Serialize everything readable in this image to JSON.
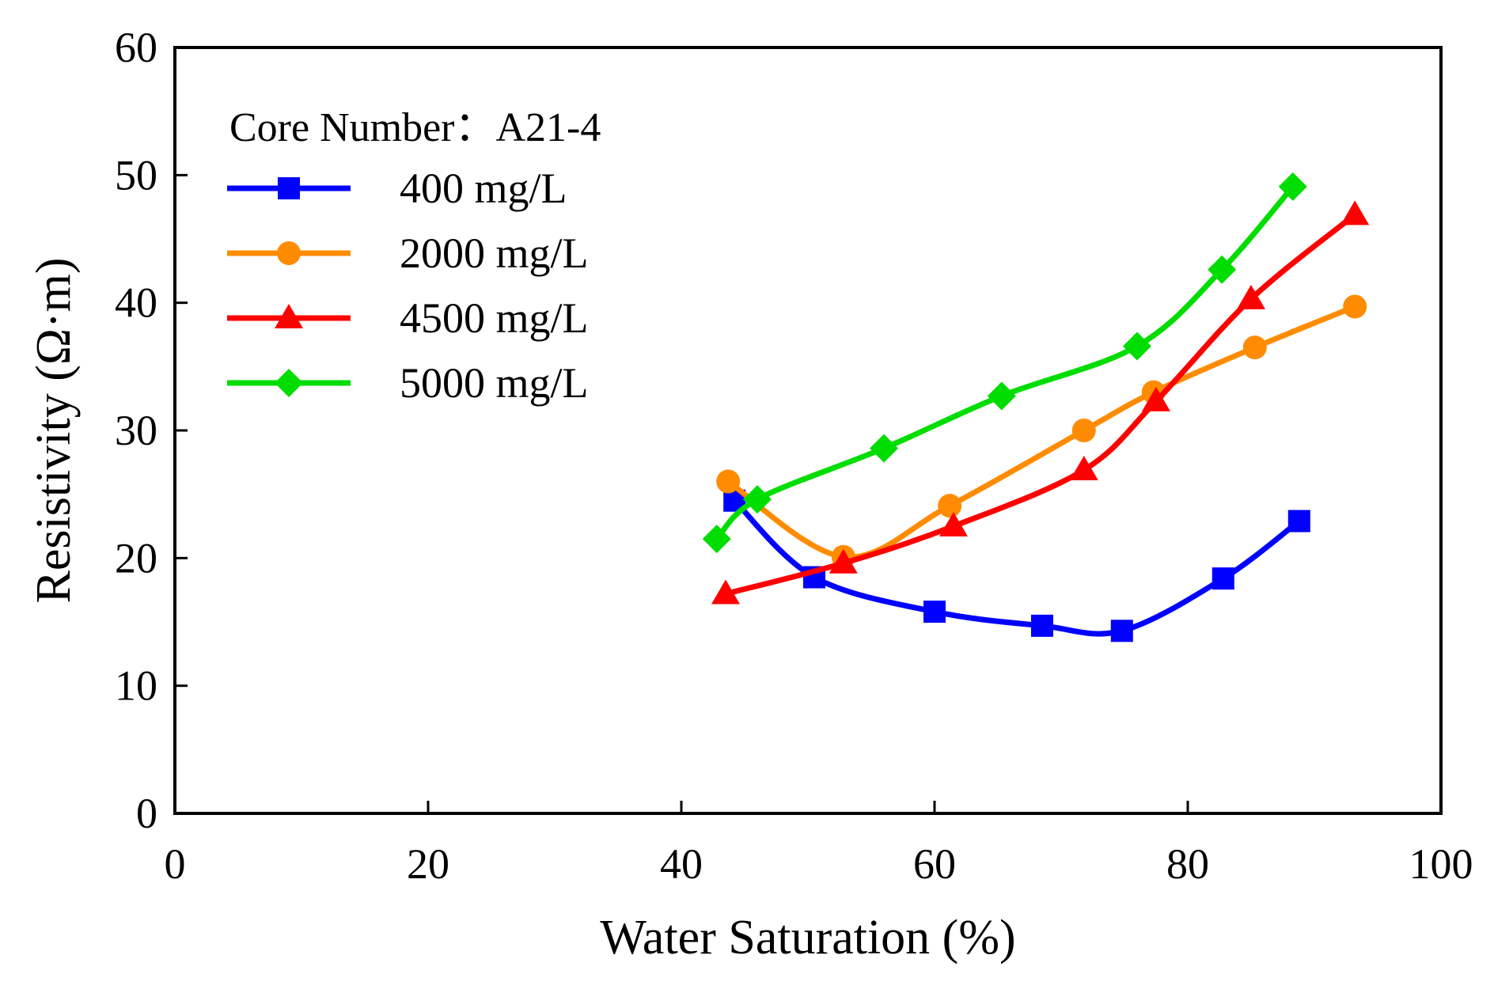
{
  "chart_data": {
    "type": "line",
    "title": "",
    "xlabel": "Water Saturation (%)",
    "ylabel": "Resistivity (Ω·m)",
    "xlim": [
      0,
      100
    ],
    "ylim": [
      0,
      60
    ],
    "xticks": [
      0,
      20,
      40,
      60,
      80,
      100
    ],
    "yticks": [
      0,
      10,
      20,
      30,
      40,
      50,
      60
    ],
    "grid": false,
    "legend_position": "top-left",
    "annotation": "Core Number：A21-4",
    "series": [
      {
        "name": "400 mg/L",
        "color": "#0000ff",
        "marker": "square",
        "x": [
          44.2,
          50.5,
          60.0,
          68.5,
          74.8,
          82.8,
          88.8
        ],
        "y": [
          24.5,
          18.5,
          15.8,
          14.7,
          14.3,
          18.4,
          22.9
        ]
      },
      {
        "name": "2000 mg/L",
        "color": "#ff8c00",
        "marker": "circle",
        "x": [
          43.7,
          52.8,
          61.2,
          71.8,
          77.3,
          85.3,
          93.2
        ],
        "y": [
          26.0,
          20.1,
          24.1,
          30.0,
          33.0,
          36.5,
          39.7
        ]
      },
      {
        "name": "4500 mg/L",
        "color": "#ff0000",
        "marker": "triangle",
        "x": [
          43.5,
          52.8,
          61.5,
          71.8,
          77.5,
          85.0,
          93.2
        ],
        "y": [
          17.2,
          19.6,
          22.5,
          26.9,
          32.3,
          40.3,
          46.9
        ]
      },
      {
        "name": "5000 mg/L",
        "color": "#00dd00",
        "marker": "diamond",
        "x": [
          42.8,
          46.0,
          56.0,
          65.3,
          76.0,
          82.7,
          88.3
        ],
        "y": [
          21.5,
          24.6,
          28.6,
          32.7,
          36.6,
          42.6,
          49.1
        ]
      }
    ]
  }
}
